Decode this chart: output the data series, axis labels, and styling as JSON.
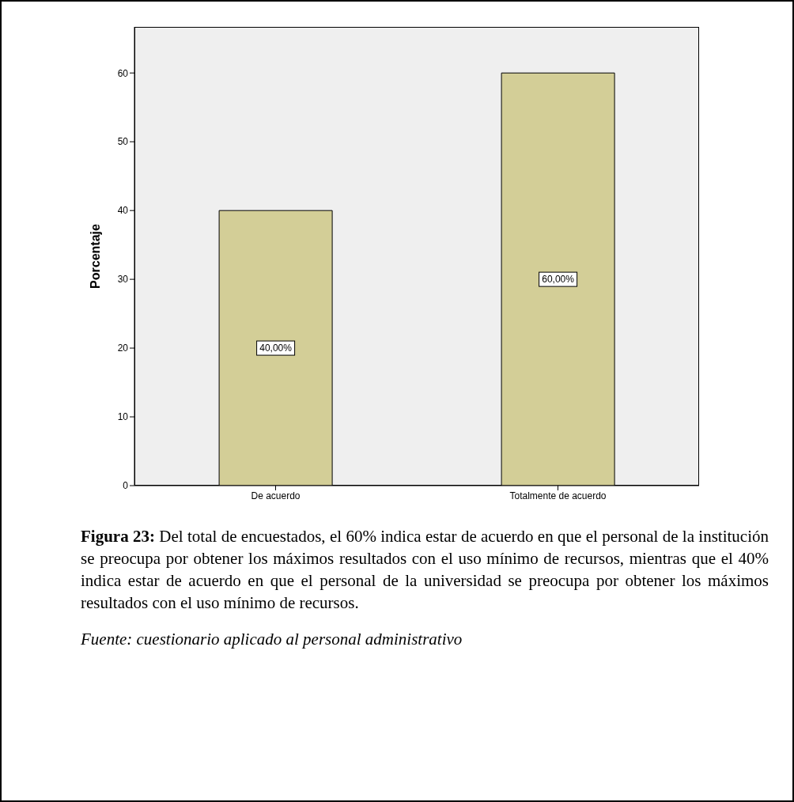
{
  "chart_data": {
    "type": "bar",
    "ylabel": "Porcentaje",
    "categories": [
      "De acuerdo",
      "Totalmente de acuerdo"
    ],
    "values": [
      40,
      60
    ],
    "color": "#d3ce97",
    "value_labels": [
      "40,00%",
      "60,00%"
    ],
    "ylim": [
      0,
      66.7
    ],
    "yticks": [
      0,
      10,
      20,
      30,
      40,
      50,
      60
    ],
    "grid": false,
    "legend": false,
    "annotations": [
      "Figura 23:",
      "Del total de encuestados, el 60% indica estar de acuerdo en que el personal de la institución se preocupa por obtener los máximos resultados con el uso mínimo de recursos, mientras que el 40% indica estar de acuerdo en que el personal de la universidad se preocupa por obtener los máximos resultados con el uso mínimo de recursos.",
      "Fuente: cuestionario aplicado al personal administrativo"
    ]
  }
}
